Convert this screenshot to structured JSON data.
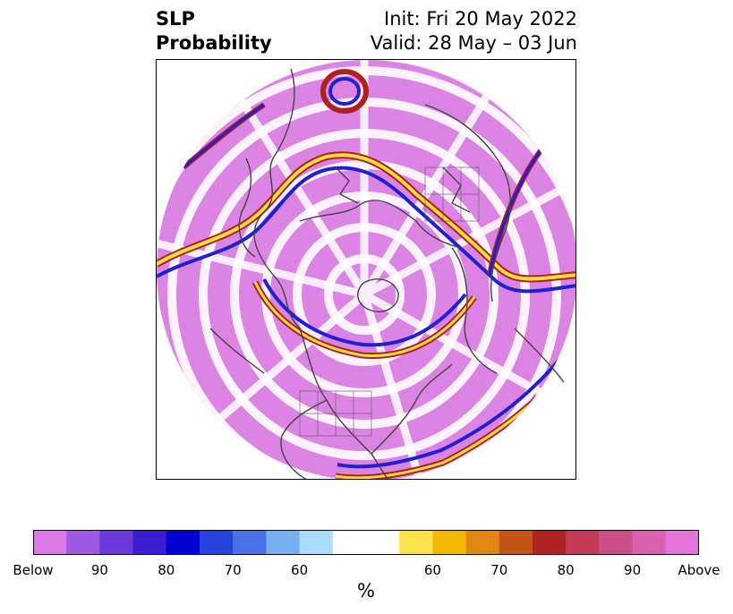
{
  "title": {
    "left_line1": "SLP",
    "left_line2": "Probability",
    "right_line1": "Init: Fri 20 May 2022",
    "right_line2": "Valid: 28 May – 03 Jun"
  },
  "map": {
    "projection": "north-polar-stereographic",
    "background": "#ffffff",
    "coastline_color": "#444444",
    "field_color_dominant": "#d878e0",
    "contour_band_colors": [
      "#2020d0",
      "#ffe040",
      "#e08010",
      "#b02020"
    ]
  },
  "colorbar": {
    "segments": [
      "#d97ae6",
      "#9f58e2",
      "#6a3bd9",
      "#3c1ed1",
      "#0000cc",
      "#2842dc",
      "#4a72e6",
      "#76b0f0",
      "#acdcfb",
      "#ffffff",
      "#ffffff",
      "#ffe34c",
      "#f5b800",
      "#e08712",
      "#c65418",
      "#b02224",
      "#c23a55",
      "#cc5087",
      "#d860ac",
      "#e674da"
    ],
    "ticks": [
      "Below",
      "90",
      "80",
      "70",
      "60",
      "",
      "60",
      "70",
      "80",
      "90",
      "Above"
    ],
    "unit": "%"
  }
}
